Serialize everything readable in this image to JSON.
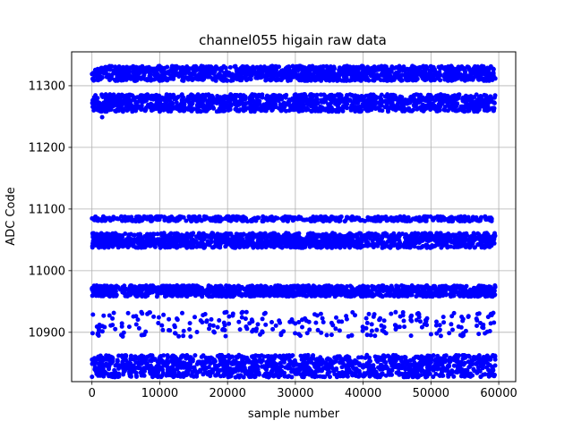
{
  "chart_data": {
    "type": "scatter",
    "title": "channel055 higain raw data",
    "xlabel": "sample number",
    "ylabel": "ADC Code",
    "xlim": [
      -3000,
      62500
    ],
    "ylim": [
      10820,
      11355
    ],
    "grid": true,
    "x_ticks": [
      0,
      10000,
      20000,
      30000,
      40000,
      50000,
      60000
    ],
    "x_tick_labels": [
      "0",
      "10000",
      "20000",
      "30000",
      "40000",
      "50000",
      "60000"
    ],
    "y_ticks": [
      10900,
      11000,
      11100,
      11200,
      11300
    ],
    "y_tick_labels": [
      "10900",
      "11000",
      "11100",
      "11200",
      "11300"
    ],
    "marker_color": "#0000ff",
    "x_range": [
      0,
      59500
    ],
    "series": [
      {
        "bands": [
          {
            "center": 11320,
            "half_width": 12,
            "density": "dense"
          },
          {
            "center": 11272,
            "half_width": 14,
            "density": "dense"
          },
          {
            "center": 11084,
            "half_width": 4,
            "density": "medium"
          },
          {
            "center": 11049,
            "half_width": 12,
            "density": "dense"
          },
          {
            "center": 10967,
            "half_width": 9,
            "density": "dense"
          },
          {
            "center": 10913,
            "half_width": 20,
            "density": "sparse"
          },
          {
            "center": 10845,
            "half_width": 18,
            "density": "dense"
          }
        ],
        "outliers": [
          {
            "x": 1500,
            "y": 11249
          }
        ]
      }
    ]
  }
}
